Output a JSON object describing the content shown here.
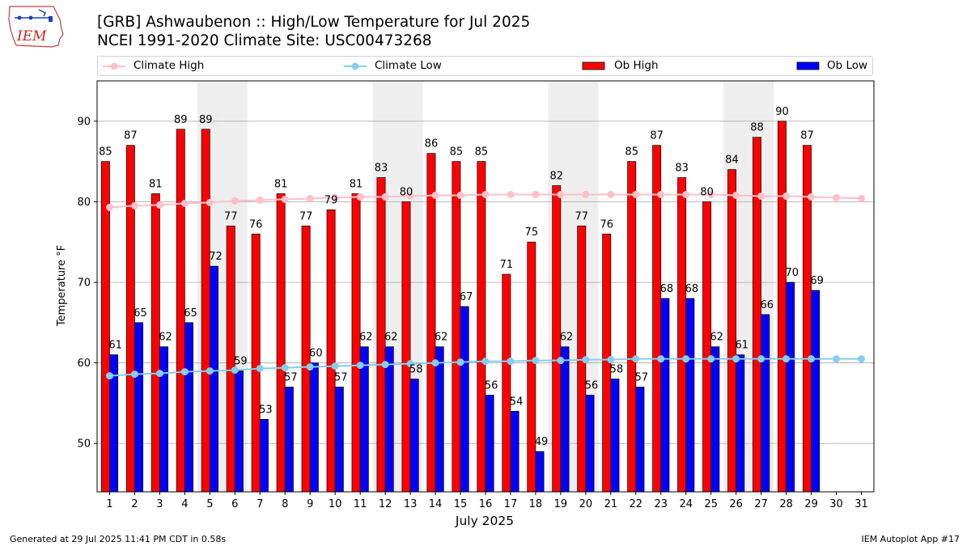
{
  "header": {
    "title_line1": "[GRB] Ashwaubenon :: High/Low Temperature for Jul 2025",
    "title_line2": "NCEI 1991-2020 Climate Site: USC00473268",
    "logo_text": "IEM"
  },
  "legend": {
    "climate_high": "Climate High",
    "climate_low": "Climate Low",
    "ob_high": "Ob High",
    "ob_low": "Ob Low"
  },
  "footer": {
    "generated": "Generated at 29 Jul 2025 11:41 PM CDT in 0.58s",
    "app": "IEM Autoplot App #17"
  },
  "colors": {
    "ob_high": "#ff0000",
    "ob_low": "#0000ff",
    "climate_high": "#ffc0cb",
    "climate_low": "#87ceeb",
    "weekend_shade": "#eeeeee",
    "grid": "#b0b0b0"
  },
  "chart_data": {
    "type": "bar",
    "xlabel": "July 2025",
    "ylabel": "Temperature °F",
    "xlim": [
      0.5,
      31.5
    ],
    "ylim": [
      44,
      95
    ],
    "yticks": [
      50,
      60,
      70,
      80,
      90
    ],
    "grid": "horizontal",
    "legend_position": "top",
    "weekend_shaded_days": [
      5,
      6,
      12,
      13,
      19,
      20,
      26,
      27
    ],
    "x": [
      1,
      2,
      3,
      4,
      5,
      6,
      7,
      8,
      9,
      10,
      11,
      12,
      13,
      14,
      15,
      16,
      17,
      18,
      19,
      20,
      21,
      22,
      23,
      24,
      25,
      26,
      27,
      28,
      29,
      30,
      31
    ],
    "series": [
      {
        "name": "Ob High",
        "kind": "bar",
        "values": [
          85,
          87,
          81,
          89,
          89,
          77,
          76,
          81,
          77,
          79,
          81,
          83,
          80,
          86,
          85,
          85,
          71,
          75,
          82,
          77,
          76,
          85,
          87,
          83,
          80,
          84,
          88,
          90,
          87,
          null,
          null
        ]
      },
      {
        "name": "Ob Low",
        "kind": "bar",
        "values": [
          61,
          65,
          62,
          65,
          72,
          59,
          53,
          57,
          60,
          57,
          62,
          62,
          58,
          62,
          67,
          56,
          54,
          49,
          62,
          56,
          58,
          57,
          68,
          68,
          62,
          61,
          66,
          70,
          69,
          null,
          null
        ]
      },
      {
        "name": "Climate High",
        "kind": "line",
        "values": [
          79.3,
          79.5,
          79.6,
          79.8,
          79.9,
          80.1,
          80.2,
          80.3,
          80.4,
          80.5,
          80.6,
          80.6,
          80.7,
          80.8,
          80.8,
          80.9,
          80.9,
          80.9,
          80.9,
          80.9,
          80.9,
          80.9,
          80.9,
          80.9,
          80.9,
          80.8,
          80.7,
          80.7,
          80.6,
          80.5,
          80.4
        ]
      },
      {
        "name": "Climate Low",
        "kind": "line",
        "values": [
          58.4,
          58.6,
          58.7,
          58.9,
          59.0,
          59.1,
          59.3,
          59.4,
          59.5,
          59.6,
          59.7,
          59.8,
          59.9,
          60.0,
          60.1,
          60.2,
          60.2,
          60.3,
          60.3,
          60.4,
          60.4,
          60.5,
          60.5,
          60.5,
          60.5,
          60.5,
          60.5,
          60.5,
          60.5,
          60.5,
          60.5
        ]
      }
    ]
  }
}
